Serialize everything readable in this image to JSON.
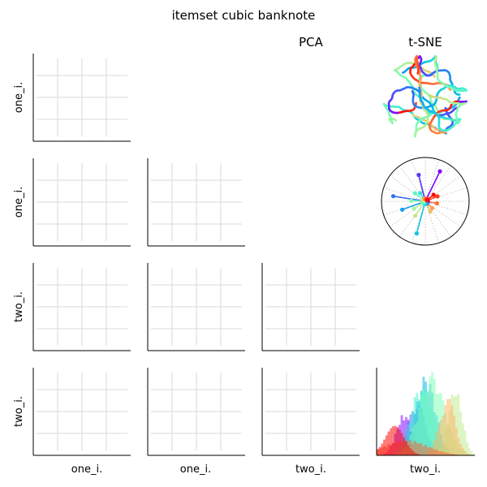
{
  "title": "itemset cubic banknote",
  "column_titles": {
    "pca": "PCA",
    "tsne": "t-SNE"
  },
  "axis_labels": {
    "rows": [
      "one_i.",
      "one_i.",
      "two_i.",
      "two_i."
    ],
    "cols": [
      "one_i.",
      "one_i.",
      "two_i.",
      "two_i."
    ]
  },
  "colors": {
    "grid": "#d9d9d9",
    "axis": "#000000",
    "palette": [
      "#8000ff",
      "#4062fa",
      "#00b5eb",
      "#40ecd4",
      "#80ffb4",
      "#c0eb8d",
      "#ffb360",
      "#ff6230",
      "#ff0000"
    ]
  },
  "chart_data": [
    {
      "type": "scatter",
      "panel": "row1-col1",
      "xlabel": "",
      "ylabel": "one_i.",
      "grid": true,
      "series": []
    },
    {
      "type": "scatter",
      "panel": "row2-col1",
      "xlabel": "",
      "ylabel": "one_i.",
      "grid": true,
      "series": []
    },
    {
      "type": "scatter",
      "panel": "row2-col2",
      "xlabel": "",
      "ylabel": "",
      "grid": true,
      "series": []
    },
    {
      "type": "scatter",
      "panel": "row3-col1",
      "xlabel": "",
      "ylabel": "two_i.",
      "grid": true,
      "series": []
    },
    {
      "type": "scatter",
      "panel": "row3-col2",
      "xlabel": "",
      "ylabel": "",
      "grid": true,
      "series": []
    },
    {
      "type": "scatter",
      "panel": "row3-col3",
      "xlabel": "",
      "ylabel": "",
      "grid": true,
      "series": []
    },
    {
      "type": "scatter",
      "panel": "row4-col1",
      "xlabel": "one_i.",
      "ylabel": "two_i.",
      "grid": true,
      "series": []
    },
    {
      "type": "scatter",
      "panel": "row4-col2",
      "xlabel": "one_i.",
      "ylabel": "",
      "grid": true,
      "series": []
    },
    {
      "type": "scatter",
      "panel": "row4-col3",
      "xlabel": "two_i.",
      "ylabel": "",
      "grid": true,
      "series": []
    },
    {
      "type": "scatter",
      "panel": "tsne-embedding",
      "title": "t-SNE",
      "grid": false,
      "curve_count": 9
    },
    {
      "type": "scatter",
      "panel": "polar-star",
      "grid": true,
      "spokes": [
        {
          "angle_deg": 64,
          "r": 0.76
        },
        {
          "angle_deg": 104,
          "r": 0.62
        },
        {
          "angle_deg": 171,
          "r": 0.74
        },
        {
          "angle_deg": 200,
          "r": 0.56
        },
        {
          "angle_deg": 255,
          "r": 0.76
        },
        {
          "angle_deg": 122,
          "r": 0.22
        },
        {
          "angle_deg": 142,
          "r": 0.3
        },
        {
          "angle_deg": 178,
          "r": 0.32
        },
        {
          "angle_deg": 213,
          "r": 0.31
        },
        {
          "angle_deg": 235,
          "r": 0.4
        },
        {
          "angle_deg": 296,
          "r": 0.26
        },
        {
          "angle_deg": 316,
          "r": 0.22
        },
        {
          "angle_deg": 350,
          "r": 0.27
        },
        {
          "angle_deg": 22,
          "r": 0.3
        },
        {
          "angle_deg": 38,
          "r": 0.24
        }
      ]
    },
    {
      "type": "bar",
      "panel": "histogram-two_i.",
      "xlabel": "two_i.",
      "grid": false,
      "bins": 45,
      "series": [
        {
          "mu": 0.28,
          "sd": 0.08,
          "peak": 0.48
        },
        {
          "mu": 0.41,
          "sd": 0.09,
          "peak": 0.62
        },
        {
          "mu": 0.5,
          "sd": 0.1,
          "peak": 0.92
        },
        {
          "mu": 0.46,
          "sd": 0.11,
          "peak": 0.82
        },
        {
          "mu": 0.56,
          "sd": 0.13,
          "peak": 0.95
        },
        {
          "mu": 0.8,
          "sd": 0.07,
          "peak": 0.78
        },
        {
          "mu": 0.72,
          "sd": 0.08,
          "peak": 0.68
        },
        {
          "mu": 0.3,
          "sd": 0.22,
          "peak": 0.18
        },
        {
          "mu": 0.18,
          "sd": 0.1,
          "peak": 0.34
        }
      ]
    }
  ]
}
